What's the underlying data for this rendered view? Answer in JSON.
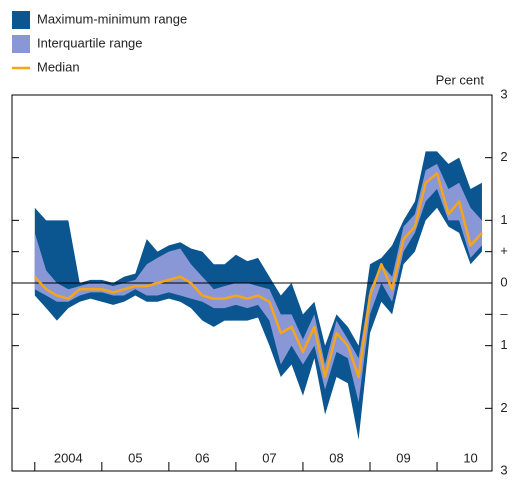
{
  "chart_data": {
    "type": "band",
    "y_axis_label": "Per cent",
    "x": [
      2004.0,
      2004.17,
      2004.33,
      2004.5,
      2004.67,
      2004.83,
      2005.0,
      2005.17,
      2005.33,
      2005.5,
      2005.67,
      2005.83,
      2006.0,
      2006.17,
      2006.33,
      2006.5,
      2006.67,
      2006.83,
      2007.0,
      2007.17,
      2007.33,
      2007.5,
      2007.67,
      2007.83,
      2008.0,
      2008.17,
      2008.33,
      2008.5,
      2008.67,
      2008.83,
      2009.0,
      2009.17,
      2009.33,
      2009.5,
      2009.67,
      2009.83,
      2010.0,
      2010.17,
      2010.33,
      2010.5,
      2010.67
    ],
    "series": [
      {
        "name": "Maximum-minimum range",
        "color": "#0b5591",
        "upper": [
          1.2,
          1.0,
          1.0,
          1.0,
          0.0,
          0.05,
          0.05,
          0.0,
          0.1,
          0.15,
          0.7,
          0.5,
          0.6,
          0.65,
          0.55,
          0.5,
          0.3,
          0.3,
          0.45,
          0.35,
          0.4,
          0.1,
          -0.2,
          0.0,
          -0.5,
          -0.3,
          -1.0,
          -0.5,
          -0.7,
          -1.0,
          0.3,
          0.4,
          0.6,
          1.0,
          1.3,
          2.1,
          2.1,
          1.9,
          2.0,
          1.5,
          1.6
        ],
        "lower": [
          -0.2,
          -0.4,
          -0.6,
          -0.4,
          -0.3,
          -0.25,
          -0.3,
          -0.35,
          -0.3,
          -0.2,
          -0.3,
          -0.3,
          -0.25,
          -0.3,
          -0.4,
          -0.6,
          -0.7,
          -0.6,
          -0.6,
          -0.6,
          -0.55,
          -1.0,
          -1.5,
          -1.3,
          -1.8,
          -1.2,
          -2.1,
          -1.5,
          -1.6,
          -2.5,
          -0.8,
          -0.3,
          -0.5,
          0.3,
          0.5,
          1.0,
          1.2,
          0.9,
          0.8,
          0.3,
          0.5
        ]
      },
      {
        "name": "Interquartile range",
        "color": "#8a97d6",
        "upper": [
          0.8,
          0.2,
          0.0,
          -0.1,
          -0.05,
          0.0,
          0.0,
          -0.05,
          0.0,
          0.05,
          0.3,
          0.4,
          0.5,
          0.55,
          0.3,
          0.1,
          -0.1,
          -0.05,
          0.0,
          0.0,
          -0.05,
          -0.1,
          -0.5,
          -0.5,
          -0.9,
          -0.5,
          -1.3,
          -0.6,
          -0.9,
          -1.2,
          -0.1,
          0.3,
          0.1,
          0.9,
          1.1,
          1.8,
          1.9,
          1.5,
          1.6,
          1.2,
          1.0
        ],
        "lower": [
          -0.1,
          -0.2,
          -0.3,
          -0.3,
          -0.2,
          -0.15,
          -0.15,
          -0.2,
          -0.2,
          -0.1,
          -0.2,
          -0.2,
          -0.15,
          -0.2,
          -0.25,
          -0.3,
          -0.4,
          -0.4,
          -0.35,
          -0.4,
          -0.35,
          -0.6,
          -1.3,
          -1.0,
          -1.3,
          -1.0,
          -1.7,
          -1.1,
          -1.2,
          -1.9,
          -0.5,
          0.0,
          -0.3,
          0.5,
          0.8,
          1.3,
          1.5,
          1.0,
          1.0,
          0.4,
          0.6
        ]
      },
      {
        "name": "Median",
        "color": "#f4a51c",
        "values": [
          0.1,
          -0.1,
          -0.2,
          -0.25,
          -0.1,
          -0.1,
          -0.1,
          -0.15,
          -0.1,
          -0.05,
          -0.05,
          0.0,
          0.05,
          0.1,
          0.0,
          -0.2,
          -0.25,
          -0.25,
          -0.2,
          -0.25,
          -0.2,
          -0.3,
          -0.8,
          -0.7,
          -1.1,
          -0.7,
          -1.5,
          -0.8,
          -1.0,
          -1.5,
          -0.2,
          0.3,
          -0.1,
          0.7,
          0.9,
          1.6,
          1.75,
          1.1,
          1.3,
          0.6,
          0.8
        ]
      }
    ],
    "xlim": [
      2003.66,
      2010.82
    ],
    "xticks": [
      {
        "value": 2004.5,
        "label": "2004"
      },
      {
        "value": 2005.5,
        "label": "05"
      },
      {
        "value": 2006.5,
        "label": "06"
      },
      {
        "value": 2007.5,
        "label": "07"
      },
      {
        "value": 2008.5,
        "label": "08"
      },
      {
        "value": 2009.5,
        "label": "09"
      },
      {
        "value": 2010.5,
        "label": "10"
      }
    ],
    "x_boundary_ticks": [
      2004,
      2005,
      2006,
      2007,
      2008,
      2009,
      2010
    ],
    "ylim": [
      -3,
      3
    ],
    "yticks": [
      3,
      2,
      1,
      {
        "value": 0.5,
        "label": "+"
      },
      0,
      {
        "value": -0.5,
        "label": "–"
      },
      {
        "value": -1,
        "label": "1"
      },
      {
        "value": -2,
        "label": "2"
      },
      {
        "value": -3,
        "label": "3"
      }
    ],
    "zero_line": true
  }
}
